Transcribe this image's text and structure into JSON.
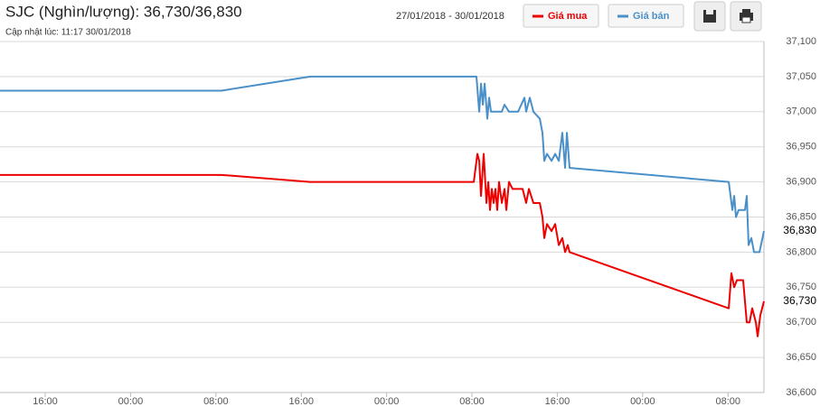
{
  "chart_data": {
    "type": "line",
    "title": "SJC (Nghìn/lượng): 36,730/36,830",
    "subtitle": "Cập nhật lúc: 11:17 30/01/2018",
    "date_range": "27/01/2018 - 30/01/2018",
    "xlim": [
      -4.24,
      67.37
    ],
    "xticks": [
      {
        "value": 0,
        "label": "16:00"
      },
      {
        "value": 8,
        "label": "00:00"
      },
      {
        "value": 16,
        "label": "08:00"
      },
      {
        "value": 24,
        "label": "16:00"
      },
      {
        "value": 32,
        "label": "00:00"
      },
      {
        "value": 40,
        "label": "08:00"
      },
      {
        "value": 48,
        "label": "16:00"
      },
      {
        "value": 56,
        "label": "00:00"
      },
      {
        "value": 64,
        "label": "08:00"
      }
    ],
    "ylim": [
      36600,
      37100
    ],
    "yticks": [
      {
        "value": 36600,
        "label": "36,600"
      },
      {
        "value": 36650,
        "label": "36,650"
      },
      {
        "value": 36700,
        "label": "36,700"
      },
      {
        "value": 36750,
        "label": "36,750"
      },
      {
        "value": 36800,
        "label": "36,800"
      },
      {
        "value": 36850,
        "label": "36,850"
      },
      {
        "value": 36900,
        "label": "36,900"
      },
      {
        "value": 36950,
        "label": "36,950"
      },
      {
        "value": 37000,
        "label": "37,000"
      },
      {
        "value": 37050,
        "label": "37,050"
      },
      {
        "value": 37100,
        "label": "37,100"
      }
    ],
    "grid": true,
    "series": [
      {
        "name": "Giá mua",
        "color": "#ee0000",
        "x": [
          -4.24,
          16.53,
          24.83,
          40.17,
          40.51,
          40.68,
          40.85,
          41.1,
          41.36,
          41.53,
          41.69,
          41.86,
          42.03,
          42.2,
          42.37,
          42.54,
          42.8,
          43.05,
          43.22,
          43.47,
          43.81,
          44.75,
          45.08,
          45.34,
          45.76,
          46.36,
          46.61,
          46.78,
          47.03,
          47.46,
          47.8,
          48.14,
          48.47,
          48.73,
          48.98,
          49.15,
          64.07,
          64.32,
          64.58,
          64.83,
          65.42,
          65.76,
          66.02,
          66.27,
          66.61,
          66.78,
          67.03,
          67.37
        ],
        "values": [
          36910,
          36910,
          36900,
          36900,
          36940,
          36930,
          36880,
          36940,
          36870,
          36900,
          36860,
          36890,
          36870,
          36890,
          36860,
          36900,
          36870,
          36890,
          36860,
          36900,
          36890,
          36890,
          36870,
          36890,
          36870,
          36870,
          36850,
          36820,
          36840,
          36830,
          36840,
          36810,
          36820,
          36800,
          36810,
          36800,
          36720,
          36770,
          36750,
          36760,
          36760,
          36700,
          36700,
          36720,
          36700,
          36680,
          36710,
          36730
        ]
      },
      {
        "name": "Giá bán",
        "color": "#4a90c8",
        "x": [
          -4.24,
          16.53,
          24.83,
          40.42,
          40.68,
          40.85,
          41.02,
          41.19,
          41.44,
          41.61,
          41.78,
          42.8,
          43.05,
          43.47,
          44.32,
          44.92,
          45.08,
          45.42,
          45.76,
          46.36,
          46.61,
          46.78,
          47.03,
          47.46,
          47.8,
          48.14,
          48.47,
          48.73,
          48.9,
          49.15,
          64.07,
          64.41,
          64.58,
          64.75,
          65.0,
          65.59,
          65.76,
          65.93,
          66.19,
          66.44,
          66.95,
          67.37
        ],
        "values": [
          37030,
          37030,
          37050,
          37050,
          37000,
          37040,
          37010,
          37040,
          36990,
          37020,
          37000,
          37000,
          37010,
          37000,
          37000,
          37020,
          37000,
          37020,
          37000,
          36990,
          36970,
          36930,
          36940,
          36930,
          36940,
          36930,
          36970,
          36920,
          36970,
          36920,
          36900,
          36860,
          36880,
          36850,
          36860,
          36860,
          36880,
          36810,
          36820,
          36800,
          36800,
          36830
        ]
      }
    ],
    "annotations": [
      {
        "text": "36,830",
        "value": 36830
      },
      {
        "text": "36,730",
        "value": 36730
      }
    ]
  }
}
